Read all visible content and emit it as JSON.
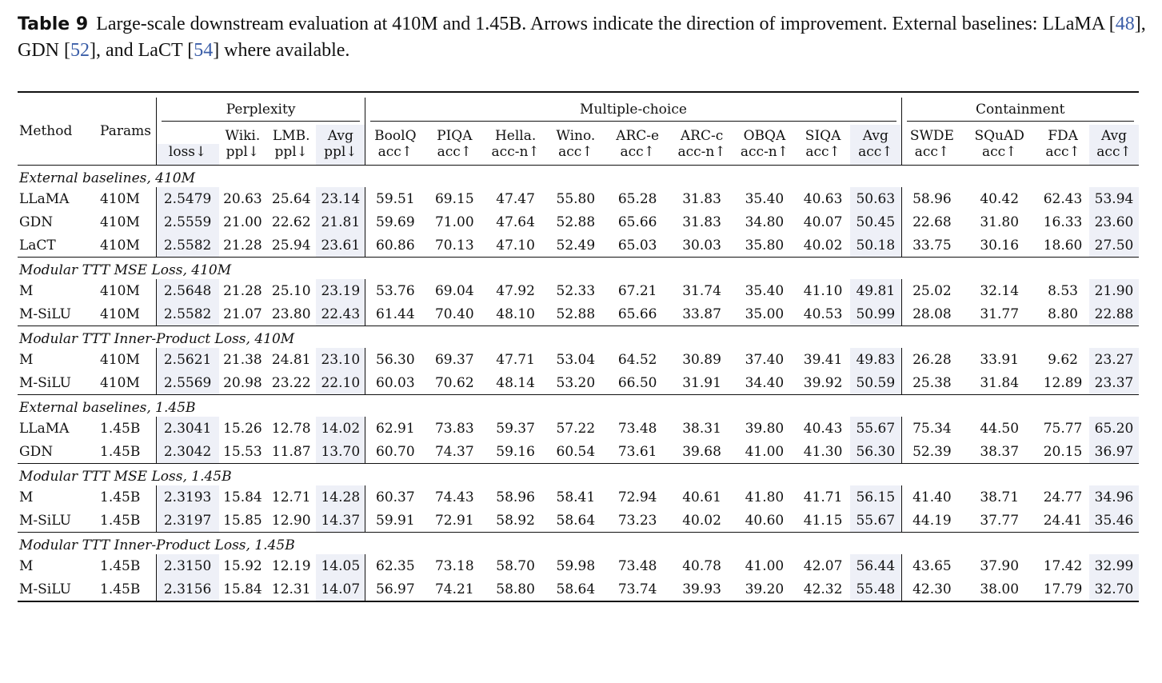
{
  "caption": {
    "label": "Table 9",
    "text_part1": "Large-scale downstream evaluation at 410M and 1.45B. Arrows indicate the direction of improvement. External baselines: LLaMA [",
    "ref_llama": "48",
    "text_part2": "], GDN [",
    "ref_gdn": "52",
    "text_part3": "], and LaCT [",
    "ref_lact": "54",
    "text_part4": "] where available."
  },
  "header": {
    "method": "Method",
    "params": "Params",
    "groups": {
      "perplexity": "Perplexity",
      "multiple_choice": "Multiple-choice",
      "containment": "Containment"
    },
    "columns": [
      {
        "top": "",
        "bottom": "loss↓"
      },
      {
        "top": "Wiki.",
        "bottom": "ppl↓"
      },
      {
        "top": "LMB.",
        "bottom": "ppl↓"
      },
      {
        "top": "Avg",
        "bottom": "ppl↓"
      },
      {
        "top": "BoolQ",
        "bottom": "acc↑"
      },
      {
        "top": "PIQA",
        "bottom": "acc↑"
      },
      {
        "top": "Hella.",
        "bottom": "acc-n↑"
      },
      {
        "top": "Wino.",
        "bottom": "acc↑"
      },
      {
        "top": "ARC-e",
        "bottom": "acc↑"
      },
      {
        "top": "ARC-c",
        "bottom": "acc-n↑"
      },
      {
        "top": "OBQA",
        "bottom": "acc-n↑"
      },
      {
        "top": "SIQA",
        "bottom": "acc↑"
      },
      {
        "top": "Avg",
        "bottom": "acc↑"
      },
      {
        "top": "SWDE",
        "bottom": "acc↑"
      },
      {
        "top": "SQuAD",
        "bottom": "acc↑"
      },
      {
        "top": "FDA",
        "bottom": "acc↑"
      },
      {
        "top": "Avg",
        "bottom": "acc↑"
      }
    ]
  },
  "sections": [
    {
      "title": "External baselines, 410M",
      "rows": [
        {
          "method": "LLaMA",
          "params": "410M",
          "values": [
            "2.5479",
            "20.63",
            "25.64",
            "23.14",
            "59.51",
            "69.15",
            "47.47",
            "55.80",
            "65.28",
            "31.83",
            "35.40",
            "40.63",
            "50.63",
            "58.96",
            "40.42",
            "62.43",
            "53.94"
          ]
        },
        {
          "method": "GDN",
          "params": "410M",
          "values": [
            "2.5559",
            "21.00",
            "22.62",
            "21.81",
            "59.69",
            "71.00",
            "47.64",
            "52.88",
            "65.66",
            "31.83",
            "34.80",
            "40.07",
            "50.45",
            "22.68",
            "31.80",
            "16.33",
            "23.60"
          ]
        },
        {
          "method": "LaCT",
          "params": "410M",
          "values": [
            "2.5582",
            "21.28",
            "25.94",
            "23.61",
            "60.86",
            "70.13",
            "47.10",
            "52.49",
            "65.03",
            "30.03",
            "35.80",
            "40.02",
            "50.18",
            "33.75",
            "30.16",
            "18.60",
            "27.50"
          ]
        }
      ]
    },
    {
      "title": "Modular TTT MSE Loss, 410M",
      "rows": [
        {
          "method": "M",
          "params": "410M",
          "values": [
            "2.5648",
            "21.28",
            "25.10",
            "23.19",
            "53.76",
            "69.04",
            "47.92",
            "52.33",
            "67.21",
            "31.74",
            "35.40",
            "41.10",
            "49.81",
            "25.02",
            "32.14",
            "8.53",
            "21.90"
          ]
        },
        {
          "method": "M-SiLU",
          "params": "410M",
          "values": [
            "2.5582",
            "21.07",
            "23.80",
            "22.43",
            "61.44",
            "70.40",
            "48.10",
            "52.88",
            "65.66",
            "33.87",
            "35.00",
            "40.53",
            "50.99",
            "28.08",
            "31.77",
            "8.80",
            "22.88"
          ]
        }
      ]
    },
    {
      "title": "Modular TTT Inner-Product Loss, 410M",
      "rows": [
        {
          "method": "M",
          "params": "410M",
          "values": [
            "2.5621",
            "21.38",
            "24.81",
            "23.10",
            "56.30",
            "69.37",
            "47.71",
            "53.04",
            "64.52",
            "30.89",
            "37.40",
            "39.41",
            "49.83",
            "26.28",
            "33.91",
            "9.62",
            "23.27"
          ]
        },
        {
          "method": "M-SiLU",
          "params": "410M",
          "values": [
            "2.5569",
            "20.98",
            "23.22",
            "22.10",
            "60.03",
            "70.62",
            "48.14",
            "53.20",
            "66.50",
            "31.91",
            "34.40",
            "39.92",
            "50.59",
            "25.38",
            "31.84",
            "12.89",
            "23.37"
          ]
        }
      ]
    },
    {
      "title": "External baselines, 1.45B",
      "rows": [
        {
          "method": "LLaMA",
          "params": "1.45B",
          "values": [
            "2.3041",
            "15.26",
            "12.78",
            "14.02",
            "62.91",
            "73.83",
            "59.37",
            "57.22",
            "73.48",
            "38.31",
            "39.80",
            "40.43",
            "55.67",
            "75.34",
            "44.50",
            "75.77",
            "65.20"
          ]
        },
        {
          "method": "GDN",
          "params": "1.45B",
          "values": [
            "2.3042",
            "15.53",
            "11.87",
            "13.70",
            "60.70",
            "74.37",
            "59.16",
            "60.54",
            "73.61",
            "39.68",
            "41.00",
            "41.30",
            "56.30",
            "52.39",
            "38.37",
            "20.15",
            "36.97"
          ]
        }
      ]
    },
    {
      "title": "Modular TTT MSE Loss, 1.45B",
      "rows": [
        {
          "method": "M",
          "params": "1.45B",
          "values": [
            "2.3193",
            "15.84",
            "12.71",
            "14.28",
            "60.37",
            "74.43",
            "58.96",
            "58.41",
            "72.94",
            "40.61",
            "41.80",
            "41.71",
            "56.15",
            "41.40",
            "38.71",
            "24.77",
            "34.96"
          ]
        },
        {
          "method": "M-SiLU",
          "params": "1.45B",
          "values": [
            "2.3197",
            "15.85",
            "12.90",
            "14.37",
            "59.91",
            "72.91",
            "58.92",
            "58.64",
            "73.23",
            "40.02",
            "40.60",
            "41.15",
            "55.67",
            "44.19",
            "37.77",
            "24.41",
            "35.46"
          ]
        }
      ]
    },
    {
      "title": "Modular TTT Inner-Product Loss, 1.45B",
      "rows": [
        {
          "method": "M",
          "params": "1.45B",
          "values": [
            "2.3150",
            "15.92",
            "12.19",
            "14.05",
            "62.35",
            "73.18",
            "58.70",
            "59.98",
            "73.48",
            "40.78",
            "41.00",
            "42.07",
            "56.44",
            "43.65",
            "37.90",
            "17.42",
            "32.99"
          ]
        },
        {
          "method": "M-SiLU",
          "params": "1.45B",
          "values": [
            "2.3156",
            "15.84",
            "12.31",
            "14.07",
            "56.97",
            "74.21",
            "58.80",
            "58.64",
            "73.74",
            "39.93",
            "39.20",
            "42.32",
            "55.48",
            "42.30",
            "38.00",
            "17.79",
            "32.70"
          ]
        }
      ]
    }
  ],
  "colors": {
    "highlight": "#eef0f7",
    "reference_link": "#3b5ea8",
    "rule": "#111111"
  }
}
